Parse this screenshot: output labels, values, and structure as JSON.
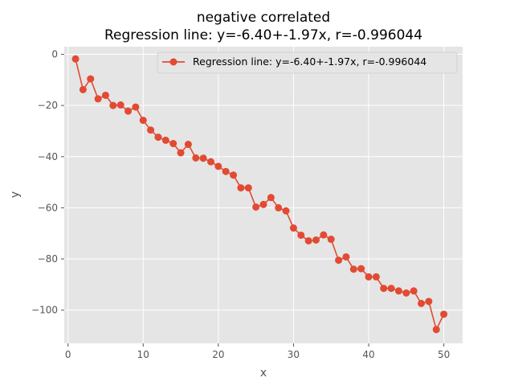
{
  "chart_data": {
    "type": "line",
    "title": "negative correlated",
    "subtitle": "Regression line: y=-6.40+-1.97x, r=-0.996044",
    "xlabel": "x",
    "ylabel": "y",
    "xlim": [
      -0.5,
      52.5
    ],
    "ylim": [
      -113,
      3
    ],
    "xticks": [
      0,
      10,
      20,
      30,
      40,
      50
    ],
    "yticks": [
      0,
      -20,
      -40,
      -60,
      -80,
      -100
    ],
    "grid": true,
    "legend_placement": "top-right",
    "colors": {
      "series": "#E24A33",
      "panel": "#E5E5E5",
      "grid": "#FFFFFF"
    },
    "series": [
      {
        "name": "Regression line: y=-6.40+-1.97x, r=-0.996044",
        "x": [
          1,
          2,
          3,
          4,
          5,
          6,
          7,
          8,
          9,
          10,
          11,
          12,
          13,
          14,
          15,
          16,
          17,
          18,
          19,
          20,
          21,
          22,
          23,
          24,
          25,
          26,
          27,
          28,
          29,
          30,
          31,
          32,
          33,
          34,
          35,
          36,
          37,
          38,
          39,
          40,
          41,
          42,
          43,
          44,
          45,
          46,
          47,
          48,
          49,
          50
        ],
        "y": [
          -1.8,
          -13.8,
          -9.6,
          -17.4,
          -16.0,
          -20.0,
          -19.8,
          -22.2,
          -20.6,
          -25.8,
          -29.6,
          -32.4,
          -33.6,
          -34.9,
          -38.5,
          -35.2,
          -40.5,
          -40.6,
          -42.0,
          -43.8,
          -45.8,
          -47.2,
          -52.2,
          -52.2,
          -59.7,
          -58.7,
          -56.0,
          -60.0,
          -61.2,
          -67.9,
          -70.7,
          -72.9,
          -72.6,
          -70.6,
          -72.3,
          -80.5,
          -79.2,
          -84.0,
          -83.8,
          -87.0,
          -87.0,
          -91.5,
          -91.5,
          -92.5,
          -93.3,
          -92.5,
          -97.4,
          -96.6,
          -107.6,
          -101.6
        ]
      }
    ]
  }
}
